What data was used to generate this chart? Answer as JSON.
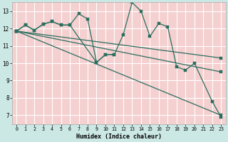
{
  "xlabel": "Humidex (Indice chaleur)",
  "background_color": "#cce8e4",
  "plot_bg_color": "#f5d0d0",
  "grid_color": "#ffffff",
  "line_color": "#2a6e5e",
  "xlim": [
    -0.5,
    23.5
  ],
  "ylim": [
    6.5,
    13.5
  ],
  "yticks": [
    7,
    8,
    9,
    10,
    11,
    12,
    13
  ],
  "xticks": [
    0,
    1,
    2,
    3,
    4,
    5,
    6,
    7,
    8,
    9,
    10,
    11,
    12,
    13,
    14,
    15,
    16,
    17,
    18,
    19,
    20,
    21,
    22,
    23
  ],
  "series1": [
    11.85,
    12.2,
    11.9,
    12.25,
    12.4,
    12.2,
    12.2,
    12.85,
    12.55,
    10.05,
    10.5,
    10.5,
    11.65,
    13.5,
    13.0,
    11.55,
    12.3,
    12.1,
    9.8,
    9.6,
    10.0,
    null,
    7.8,
    6.9
  ],
  "series2_x": [
    0,
    1,
    2,
    3,
    4,
    5,
    6,
    9,
    10,
    11
  ],
  "series2_y": [
    11.85,
    12.2,
    11.9,
    12.25,
    12.4,
    12.2,
    12.2,
    10.05,
    10.5,
    10.5
  ],
  "line2_x": [
    0,
    23
  ],
  "line2_y": [
    11.85,
    10.3
  ],
  "line3_x": [
    0,
    23
  ],
  "line3_y": [
    11.85,
    9.5
  ],
  "line4_x": [
    0,
    23
  ],
  "line4_y": [
    11.85,
    7.0
  ]
}
